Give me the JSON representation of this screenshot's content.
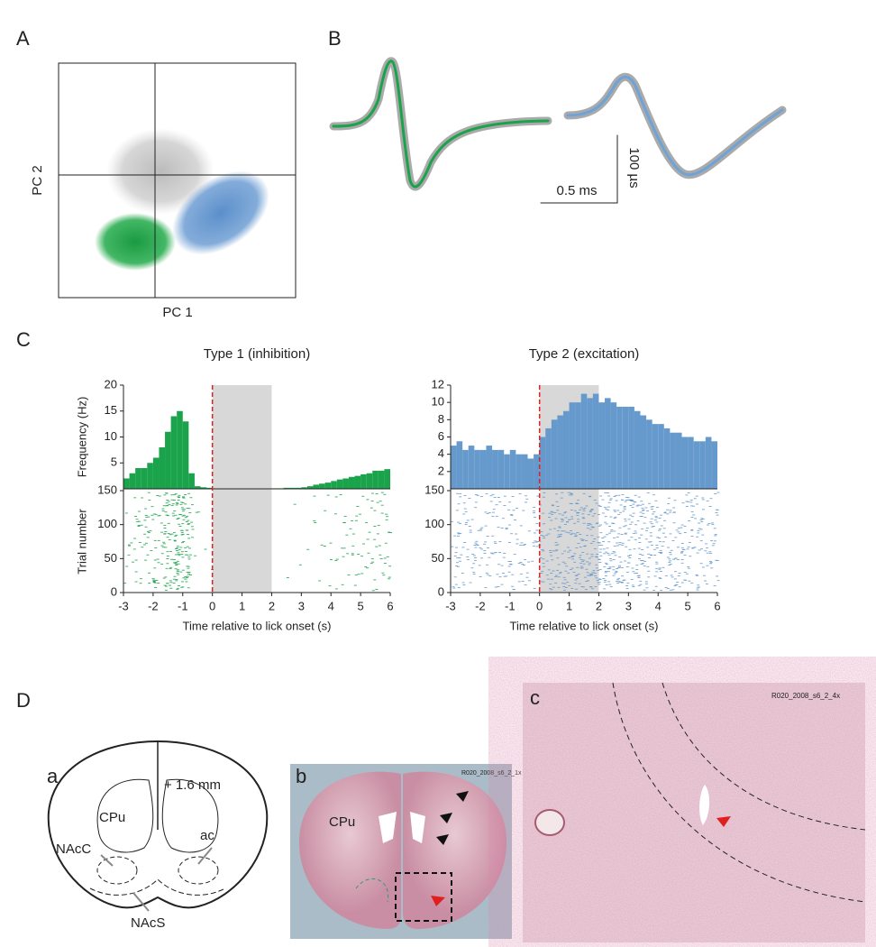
{
  "panel_labels": [
    "A",
    "B",
    "C",
    "D"
  ],
  "pca": {
    "xlabel": "PC 1",
    "ylabel": "PC 2"
  },
  "waveforms": {
    "time_scale": "0.5 ms",
    "amplitude_scale": "100 µs"
  },
  "chart_data": [
    {
      "type": "histogram",
      "title": "Type 1 (inhibition)",
      "xlabel": "Time relative to lick onset (s)",
      "ylabel": "Frequency (Hz)",
      "raster_ylabel": "Trial number",
      "color": "#1aa34a",
      "bins": [
        -3,
        -2.8,
        -2.6,
        -2.4,
        -2.2,
        -2,
        -1.8,
        -1.6,
        -1.4,
        -1.2,
        -1,
        -0.8,
        -0.6,
        -0.4,
        -0.2,
        0,
        0.2,
        0.4,
        0.6,
        0.8,
        1,
        1.2,
        1.4,
        1.6,
        1.8,
        2,
        2.2,
        2.4,
        2.6,
        2.8,
        3,
        3.2,
        3.4,
        3.6,
        3.8,
        4,
        4.2,
        4.4,
        4.6,
        4.8,
        5,
        5.2,
        5.4,
        5.6,
        5.8,
        6
      ],
      "values": [
        2,
        3,
        4,
        4,
        5,
        6,
        8,
        11,
        14,
        15,
        13,
        3,
        0.5,
        0.3,
        0.2,
        0,
        0,
        0,
        0,
        0,
        0,
        0,
        0,
        0,
        0,
        0.1,
        0.1,
        0.2,
        0.2,
        0.2,
        0.3,
        0.5,
        0.8,
        1,
        1.2,
        1.5,
        1.8,
        2,
        2.3,
        2.5,
        2.8,
        3,
        3.5,
        3.5,
        3.8
      ],
      "xlim": [
        -3,
        6
      ],
      "xticks": [
        -3,
        -2,
        -1,
        0,
        1,
        2,
        3,
        4,
        5,
        6
      ],
      "ylim": [
        0,
        20
      ],
      "yticks": [
        5,
        10,
        15,
        20
      ],
      "raster_ylim": [
        0,
        150
      ],
      "raster_yticks": [
        0,
        50,
        100,
        150
      ],
      "shade": [
        0,
        2
      ],
      "event": 0
    },
    {
      "type": "histogram",
      "title": "Type 2 (excitation)",
      "xlabel": "Time relative to lick onset (s)",
      "color": "#6699cc",
      "bins": [
        -3,
        -2.8,
        -2.6,
        -2.4,
        -2.2,
        -2,
        -1.8,
        -1.6,
        -1.4,
        -1.2,
        -1,
        -0.8,
        -0.6,
        -0.4,
        -0.2,
        0,
        0.2,
        0.4,
        0.6,
        0.8,
        1,
        1.2,
        1.4,
        1.6,
        1.8,
        2,
        2.2,
        2.4,
        2.6,
        2.8,
        3,
        3.2,
        3.4,
        3.6,
        3.8,
        4,
        4.2,
        4.4,
        4.6,
        4.8,
        5,
        5.2,
        5.4,
        5.6,
        5.8,
        6
      ],
      "values": [
        5,
        5.5,
        4.5,
        5,
        4.5,
        4.5,
        5,
        4.5,
        4.5,
        4,
        4.5,
        4,
        4,
        3.5,
        4,
        6,
        7,
        8,
        8.5,
        9,
        10,
        10,
        11,
        10.5,
        11,
        10,
        10.5,
        10,
        9.5,
        9.5,
        9.5,
        9,
        8.5,
        8,
        7.5,
        7.5,
        7,
        6.5,
        6.5,
        6,
        6,
        5.5,
        5.5,
        6,
        5.5
      ],
      "xlim": [
        -3,
        6
      ],
      "xticks": [
        -3,
        -2,
        -1,
        0,
        1,
        2,
        3,
        4,
        5,
        6
      ],
      "ylim": [
        0,
        12
      ],
      "yticks": [
        2,
        4,
        6,
        8,
        10,
        12
      ],
      "raster_ylim": [
        0,
        150
      ],
      "raster_yticks": [
        0,
        50,
        100,
        150
      ],
      "shade": [
        0,
        2
      ],
      "event": 0
    }
  ],
  "atlas": {
    "label": "a",
    "coordinate": "+ 1.6 mm",
    "regions": [
      "CPu",
      "NAcC",
      "ac",
      "NAcS"
    ]
  },
  "section": {
    "label": "b",
    "region": "CPu",
    "slide_id": "R020_2008_s6_2_1x"
  },
  "closeup": {
    "label": "c",
    "slide_id": "R020_2008_s6_2_4x"
  }
}
